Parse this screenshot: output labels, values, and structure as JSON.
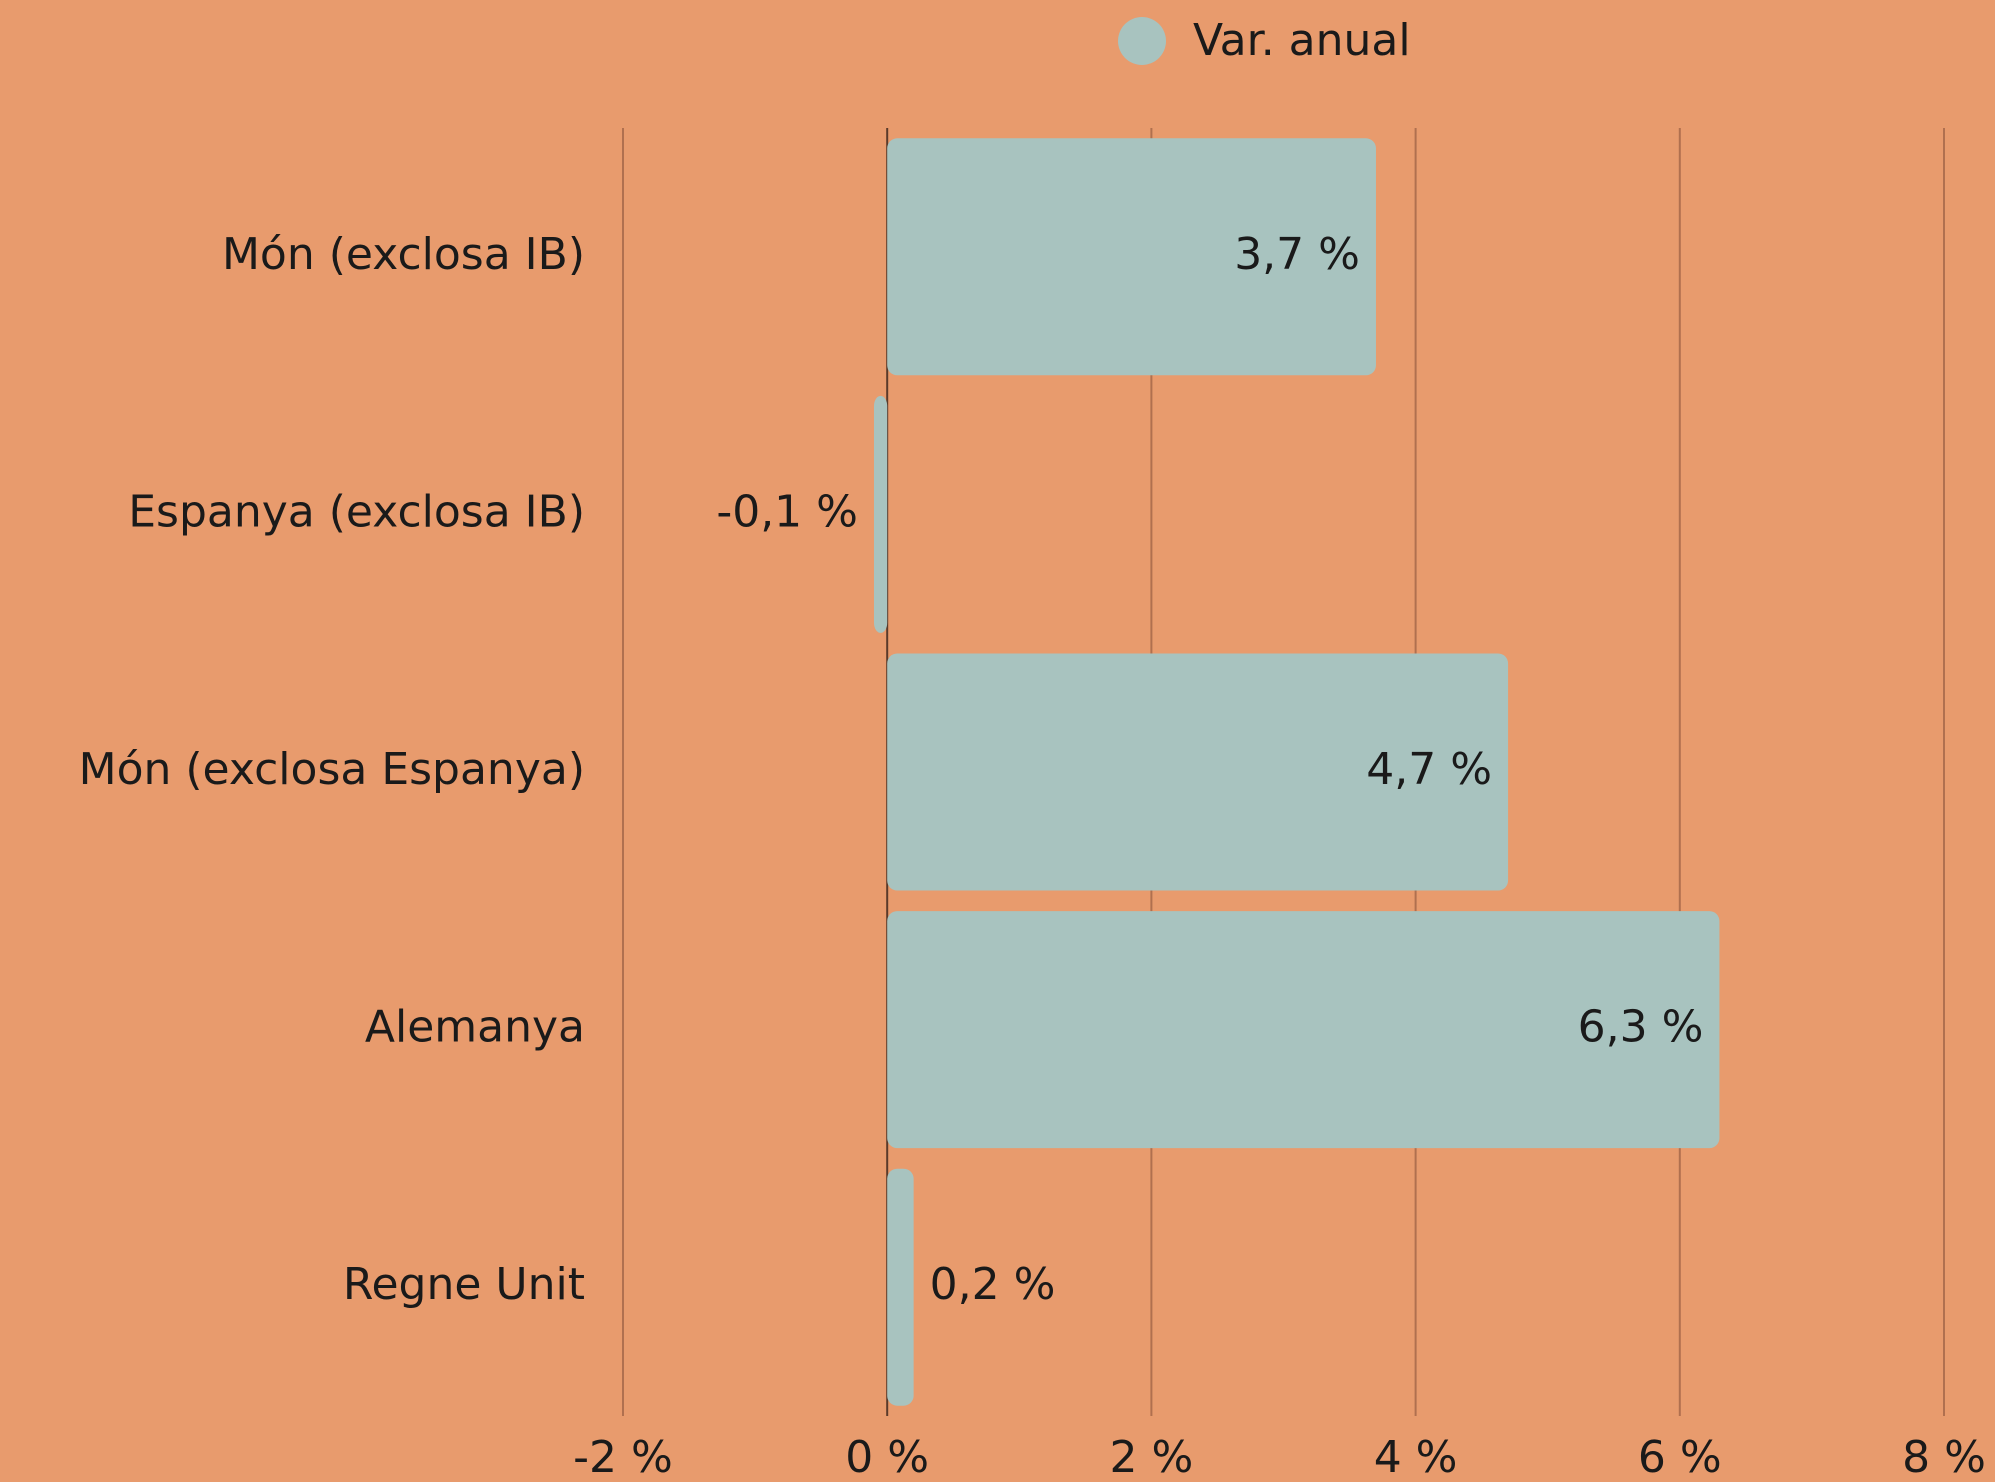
{
  "chart_data": {
    "type": "bar",
    "orientation": "horizontal",
    "categories": [
      "Món (exclosa IB)",
      "Espanya (exclosa IB)",
      "Món (exclosa Espanya)",
      "Alemanya",
      "Regne Unit"
    ],
    "series": [
      {
        "name": "Var. anual",
        "color": "#a8c3bf",
        "values": [
          3.7,
          -0.1,
          4.7,
          6.3,
          0.2
        ],
        "value_labels": [
          "3,7 %",
          "-0,1 %",
          "4,7 %",
          "6,3 %",
          "0,2 %"
        ]
      }
    ],
    "xlim": [
      -2,
      8
    ],
    "xticks": [
      {
        "value": -2,
        "label": "-2 %"
      },
      {
        "value": 0,
        "label": "0 %"
      },
      {
        "value": 2,
        "label": "2 %"
      },
      {
        "value": 4,
        "label": "4 %"
      },
      {
        "value": 6,
        "label": "6 %"
      },
      {
        "value": 8,
        "label": "8 %"
      }
    ],
    "grid": true,
    "legend": "top"
  }
}
